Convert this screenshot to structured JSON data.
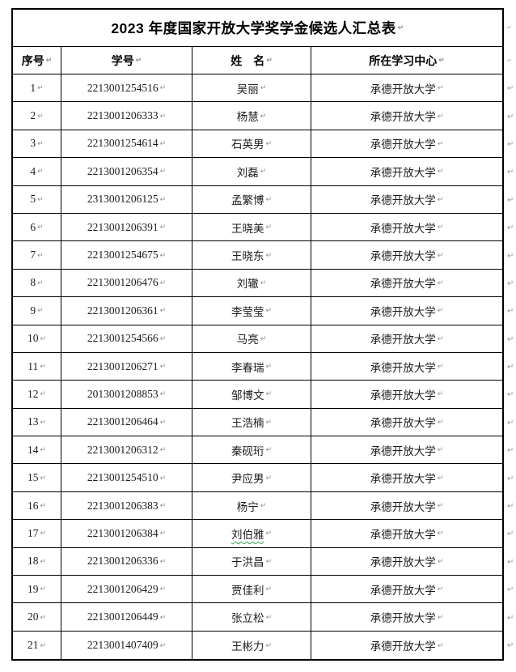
{
  "document": {
    "title": "2023 年度国家开放大学奖学金候选人汇总表",
    "columns": [
      {
        "label": "序号"
      },
      {
        "label": "学号"
      },
      {
        "label": "姓　名"
      },
      {
        "label": "所在学习中心"
      }
    ],
    "rows": [
      {
        "no": "1",
        "student_id": "2213001254516",
        "name": "吴丽",
        "center": "承德开放大学",
        "grammar_underline": false
      },
      {
        "no": "2",
        "student_id": "2213001206333",
        "name": "杨慧",
        "center": "承德开放大学",
        "grammar_underline": false
      },
      {
        "no": "3",
        "student_id": "2213001254614",
        "name": "石英男",
        "center": "承德开放大学",
        "grammar_underline": false
      },
      {
        "no": "4",
        "student_id": "2213001206354",
        "name": "刘磊",
        "center": "承德开放大学",
        "grammar_underline": false
      },
      {
        "no": "5",
        "student_id": "2313001206125",
        "name": "孟繁博",
        "center": "承德开放大学",
        "grammar_underline": false
      },
      {
        "no": "6",
        "student_id": "2213001206391",
        "name": "王晓美",
        "center": "承德开放大学",
        "grammar_underline": false
      },
      {
        "no": "7",
        "student_id": "2213001254675",
        "name": "王晓东",
        "center": "承德开放大学",
        "grammar_underline": false
      },
      {
        "no": "8",
        "student_id": "2213001206476",
        "name": "刘辙",
        "center": "承德开放大学",
        "grammar_underline": false
      },
      {
        "no": "9",
        "student_id": "2213001206361",
        "name": "李莹莹",
        "center": "承德开放大学",
        "grammar_underline": false
      },
      {
        "no": "10",
        "student_id": "2213001254566",
        "name": "马亮",
        "center": "承德开放大学",
        "grammar_underline": false
      },
      {
        "no": "11",
        "student_id": "2213001206271",
        "name": "李春瑞",
        "center": "承德开放大学",
        "grammar_underline": false
      },
      {
        "no": "12",
        "student_id": "2013001208853",
        "name": "邹博文",
        "center": "承德开放大学",
        "grammar_underline": false
      },
      {
        "no": "13",
        "student_id": "2213001206464",
        "name": "王浩楠",
        "center": "承德开放大学",
        "grammar_underline": false
      },
      {
        "no": "14",
        "student_id": "2213001206312",
        "name": "秦砚珩",
        "center": "承德开放大学",
        "grammar_underline": false
      },
      {
        "no": "15",
        "student_id": "2213001254510",
        "name": "尹应男",
        "center": "承德开放大学",
        "grammar_underline": false
      },
      {
        "no": "16",
        "student_id": "2213001206383",
        "name": "杨宁",
        "center": "承德开放大学",
        "grammar_underline": false
      },
      {
        "no": "17",
        "student_id": "2213001206384",
        "name": "刘伯雅",
        "center": "承德开放大学",
        "grammar_underline": true
      },
      {
        "no": "18",
        "student_id": "2213001206336",
        "name": "于洪昌",
        "center": "承德开放大学",
        "grammar_underline": false
      },
      {
        "no": "19",
        "student_id": "2213001206429",
        "name": "贾佳利",
        "center": "承德开放大学",
        "grammar_underline": false
      },
      {
        "no": "20",
        "student_id": "2213001206449",
        "name": "张立松",
        "center": "承德开放大学",
        "grammar_underline": false
      },
      {
        "no": "21",
        "student_id": "2213001407409",
        "name": "王彬力",
        "center": "承德开放大学",
        "grammar_underline": false
      }
    ],
    "formatting_marks": {
      "end_of_cell": "↵",
      "end_of_row": "↵"
    },
    "colors": {
      "border": "#000000",
      "text": "#1c1c1c",
      "marker": "#909090",
      "grammar_underline": "#3aa655"
    }
  }
}
